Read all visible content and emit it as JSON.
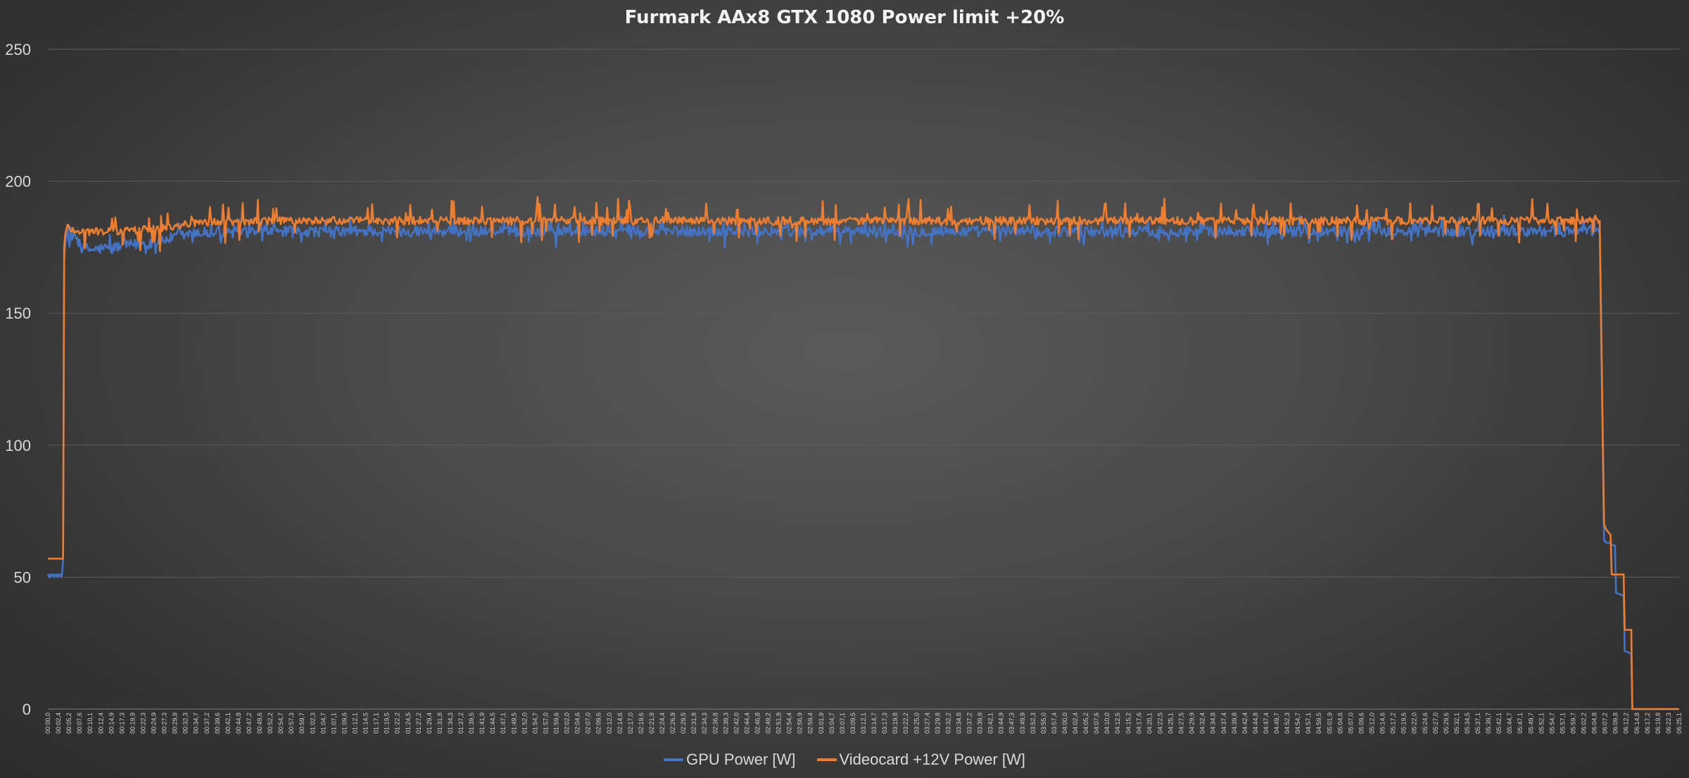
{
  "chart_data": {
    "type": "line",
    "title": "Furmark AAx8 GTX 1080 Power limit +20%",
    "xlabel": "",
    "ylabel": "",
    "ylim": [
      0,
      250
    ],
    "yticks": [
      0,
      50,
      100,
      150,
      200,
      250
    ],
    "grid": true,
    "legend_position": "bottom",
    "x_tick_labels": [
      "00:00,0",
      "00:02,4",
      "00:05,2",
      "00:07,6",
      "00:10,1",
      "00:12,4",
      "00:14,9",
      "00:17,3",
      "00:19,9",
      "00:22,3",
      "00:24,9",
      "00:27,3",
      "00:29,9",
      "00:32,3",
      "00:34,7",
      "00:37,2",
      "00:39,6",
      "00:42,1",
      "00:44,8",
      "00:47,2",
      "00:49,6",
      "00:52,2",
      "00:54,7",
      "00:57,3",
      "00:59,7",
      "01:02,3",
      "01:04,7",
      "01:07,1",
      "01:09,6",
      "01:12,1",
      "01:14,5",
      "01:17,1",
      "01:19,5",
      "01:22,2",
      "01:24,5",
      "01:27,2",
      "01:29,4",
      "01:31,8",
      "01:34,3",
      "01:37,2",
      "01:39,5",
      "01:41,9",
      "01:44,5",
      "01:47,1",
      "01:49,5",
      "01:52,0",
      "01:54,7",
      "01:57,0",
      "01:59,6",
      "02:02,0",
      "02:04,6",
      "02:07,0",
      "02:09,6",
      "02:12,0",
      "02:14,6",
      "02:17,0",
      "02:19,6",
      "02:21,9",
      "02:24,4",
      "02:26,9",
      "02:29,5",
      "02:31,8",
      "02:34,3",
      "02:36,8",
      "02:39,3",
      "02:42,0",
      "02:44,4",
      "02:46,8",
      "02:49,2",
      "02:51,9",
      "02:54,4",
      "02:56,9",
      "02:59,4",
      "03:01,9",
      "03:04,7",
      "03:07,1",
      "03:09,5",
      "03:12,1",
      "03:14,7",
      "03:17,3",
      "03:19,8",
      "03:22,2",
      "03:25,0",
      "03:27,4",
      "03:29,8",
      "03:32,2",
      "03:34,8",
      "03:37,2",
      "03:39,9",
      "03:42,1",
      "03:44,9",
      "03:47,3",
      "03:49,9",
      "03:52,3",
      "03:55,0",
      "03:57,4",
      "04:00,0",
      "04:02,4",
      "04:05,2",
      "04:07,6",
      "04:10,0",
      "04:12,5",
      "04:15,2",
      "04:17,6",
      "04:20,1",
      "04:22,5",
      "04:25,1",
      "04:27,5",
      "04:29,9",
      "04:32,4",
      "04:34,8",
      "04:37,4",
      "04:39,8",
      "04:42,4",
      "04:44,8",
      "04:47,4",
      "04:49,7",
      "04:52,3",
      "04:54,7",
      "04:57,1",
      "04:59,5",
      "05:01,9",
      "05:04,6",
      "05:07,0",
      "05:09,6",
      "05:12,0",
      "05:14,6",
      "05:17,2",
      "05:19,6",
      "05:22,0",
      "05:24,6",
      "05:27,0",
      "05:29,6",
      "05:32,1",
      "05:34,5",
      "05:37,1",
      "05:39,7",
      "05:42,1",
      "05:44,7",
      "05:47,1",
      "05:49,7",
      "05:52,1",
      "05:54,7",
      "05:57,1",
      "05:59,7",
      "06:02,2",
      "06:04,8",
      "06:07,2",
      "06:09,8",
      "06:12,2",
      "06:14,8",
      "06:17,2",
      "06:19,8",
      "06:22,3",
      "06:25,1"
    ],
    "n_points": 1500,
    "series": [
      {
        "name": "GPU Power [W]",
        "color": "#4472c4",
        "keypoints": [
          [
            0,
            51
          ],
          [
            1,
            50
          ],
          [
            2,
            51
          ],
          [
            3,
            50
          ],
          [
            4,
            51
          ],
          [
            5,
            51
          ],
          [
            6,
            50
          ],
          [
            7,
            51
          ],
          [
            8,
            51
          ],
          [
            9,
            50
          ],
          [
            10,
            51
          ],
          [
            11,
            51
          ],
          [
            12,
            50
          ],
          [
            13,
            51
          ],
          [
            14,
            56
          ],
          [
            15,
            170
          ],
          [
            16,
            176
          ],
          [
            18,
            178
          ],
          [
            20,
            177
          ],
          [
            25,
            180
          ],
          [
            30,
            175
          ],
          [
            40,
            174
          ],
          [
            60,
            175
          ],
          [
            100,
            177
          ],
          [
            130,
            180
          ],
          [
            200,
            181
          ],
          [
            400,
            181
          ],
          [
            600,
            181
          ],
          [
            800,
            181
          ],
          [
            1000,
            181
          ],
          [
            1200,
            181
          ],
          [
            1400,
            181
          ],
          [
            1422,
            181
          ],
          [
            1426,
            180
          ],
          [
            1430,
            64
          ],
          [
            1432,
            63
          ],
          [
            1436,
            63
          ],
          [
            1437,
            62
          ],
          [
            1440,
            62
          ],
          [
            1441,
            44
          ],
          [
            1448,
            43
          ],
          [
            1449,
            22
          ],
          [
            1455,
            21
          ],
          [
            1456,
            0
          ],
          [
            1499,
            0
          ]
        ]
      },
      {
        "name": "Videocard +12V Power [W]",
        "color": "#ed7d31",
        "keypoints": [
          [
            0,
            57
          ],
          [
            14,
            57
          ],
          [
            15,
            175
          ],
          [
            16,
            180
          ],
          [
            18,
            183
          ],
          [
            20,
            182
          ],
          [
            30,
            181
          ],
          [
            60,
            181
          ],
          [
            100,
            182
          ],
          [
            130,
            184
          ],
          [
            200,
            185
          ],
          [
            400,
            185
          ],
          [
            600,
            185
          ],
          [
            800,
            185
          ],
          [
            1000,
            185
          ],
          [
            1200,
            185
          ],
          [
            1400,
            185
          ],
          [
            1422,
            186
          ],
          [
            1426,
            185
          ],
          [
            1430,
            70
          ],
          [
            1432,
            68
          ],
          [
            1436,
            66
          ],
          [
            1437,
            51
          ],
          [
            1448,
            51
          ],
          [
            1449,
            30
          ],
          [
            1455,
            30
          ],
          [
            1456,
            0
          ],
          [
            1499,
            0
          ]
        ]
      }
    ]
  }
}
